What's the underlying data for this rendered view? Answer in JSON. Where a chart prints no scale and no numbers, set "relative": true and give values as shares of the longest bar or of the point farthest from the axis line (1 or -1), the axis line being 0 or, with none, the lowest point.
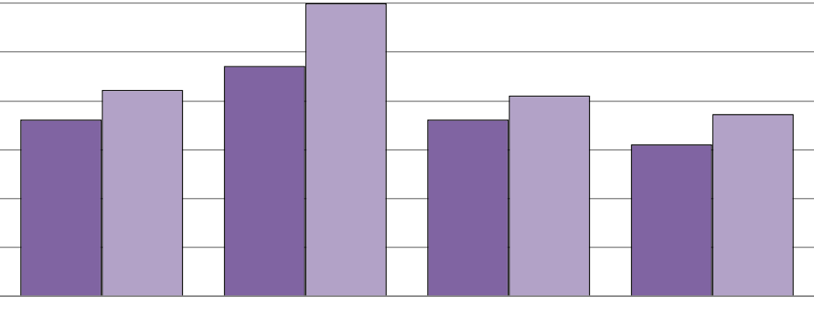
{
  "chart_data": {
    "type": "bar",
    "relative": true,
    "grid": true,
    "categories": [
      null,
      null,
      null,
      null
    ],
    "series": [
      {
        "color": "#8064a2",
        "values": [
          0.603,
          0.786,
          0.603,
          0.518
        ]
      },
      {
        "color": "#b2a2c7",
        "values": [
          0.704,
          1,
          0.685,
          0.622
        ]
      }
    ]
  }
}
